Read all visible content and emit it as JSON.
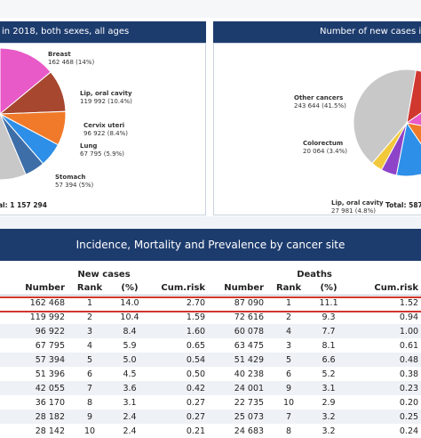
{
  "panels": {
    "left_title": "in 2018, both sexes, all ages",
    "right_title": "Number of new cases in 20",
    "left_total": "al: 1 157 294",
    "right_total": "Total: 587 2"
  },
  "table_title": "Incidence, Mortality and Prevalence by cancer site",
  "table": {
    "group_headers": [
      "New cases",
      "Deaths"
    ],
    "columns": [
      "Number",
      "Rank",
      "(%)",
      "Cum.risk",
      "Number",
      "Rank",
      "(%)",
      "Cum.risk"
    ],
    "rows": [
      [
        "162 468",
        "1",
        "14.0",
        "2.70",
        "87 090",
        "1",
        "11.1",
        "1.52"
      ],
      [
        "119 992",
        "2",
        "10.4",
        "1.59",
        "72 616",
        "2",
        "9.3",
        "0.94"
      ],
      [
        "96 922",
        "3",
        "8.4",
        "1.60",
        "60 078",
        "4",
        "7.7",
        "1.00"
      ],
      [
        "67 795",
        "4",
        "5.9",
        "0.65",
        "63 475",
        "3",
        "8.1",
        "0.61"
      ],
      [
        "57 394",
        "5",
        "5.0",
        "0.54",
        "51 429",
        "5",
        "6.6",
        "0.48"
      ],
      [
        "51 396",
        "6",
        "4.5",
        "0.50",
        "40 238",
        "6",
        "5.2",
        "0.38"
      ],
      [
        "42 055",
        "7",
        "3.6",
        "0.42",
        "24 001",
        "9",
        "3.1",
        "0.23"
      ],
      [
        "36 170",
        "8",
        "3.1",
        "0.27",
        "22 735",
        "10",
        "2.9",
        "0.20"
      ],
      [
        "28 182",
        "9",
        "2.4",
        "0.27",
        "25 073",
        "7",
        "3.2",
        "0.25"
      ],
      [
        "28 142",
        "10",
        "2.4",
        "0.21",
        "24 683",
        "8",
        "3.2",
        "0.24"
      ]
    ]
  },
  "chart_data": [
    {
      "type": "pie",
      "title": "in 2018, both sexes, all ages",
      "total": "1 157 294",
      "slices": [
        {
          "label": "Breast",
          "value": 162468,
          "display": "162 468 (14%)",
          "color": "#e85ac8"
        },
        {
          "label": "Lip, oral cavity",
          "value": 119992,
          "display": "119 992 (10.4%)",
          "color": "#a8472f"
        },
        {
          "label": "Cervix uteri",
          "value": 96922,
          "display": "96 922 (8.4%)",
          "color": "#f07a2a"
        },
        {
          "label": "Lung",
          "value": 67795,
          "display": "67 795 (5.9%)",
          "color": "#2e8fe8"
        },
        {
          "label": "Stomach",
          "value": 57394,
          "display": "57 394 (5%)",
          "color": "#3d6ea8"
        },
        {
          "label": "",
          "value": 653223,
          "display": "",
          "color": "#c8c8c8"
        }
      ]
    },
    {
      "type": "pie",
      "title": "Number of new cases in 20",
      "total": "587 2",
      "slices": [
        {
          "label": "Other cancers",
          "value": 243644,
          "display": "243 644 (41.5%)",
          "color": "#c8c8c8"
        },
        {
          "label": "Colorectum",
          "value": 20064,
          "display": "20 064 (3.4%)",
          "color": "#f2c93a"
        },
        {
          "label": "Lip, oral cavity",
          "value": 27981,
          "display": "27 981 (4.8%)",
          "color": "#8e44c8"
        }
      ]
    }
  ],
  "colors": {
    "header_navy": "#1d3c6e",
    "highlight_red": "#d0372e"
  }
}
